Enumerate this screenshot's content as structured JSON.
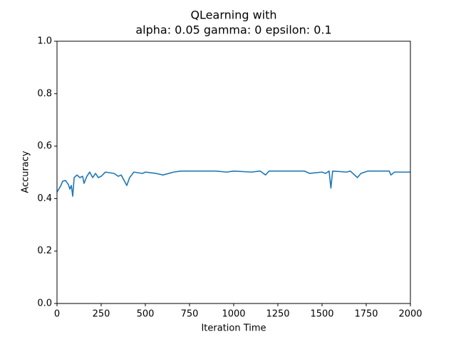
{
  "chart_data": {
    "type": "line",
    "title": "QLearning with",
    "subtitle": "alpha: 0.05 gamma: 0 epsilon: 0.1",
    "x_label": "Iteration Time",
    "y_label": "Accuracy",
    "color": "#1f77b4",
    "grid": false,
    "x": [
      0,
      20,
      32,
      48,
      65,
      73,
      81,
      89,
      97,
      113,
      129,
      145,
      153,
      169,
      185,
      202,
      218,
      234,
      250,
      274,
      323,
      347,
      363,
      395,
      411,
      435,
      484,
      500,
      560,
      600,
      660,
      700,
      900,
      960,
      1000,
      1100,
      1150,
      1180,
      1200,
      1400,
      1430,
      1500,
      1520,
      1540,
      1550,
      1560,
      1640,
      1660,
      1700,
      1720,
      1760,
      1880,
      1890,
      1910,
      2000
    ],
    "values": [
      0.425,
      0.447,
      0.466,
      0.469,
      0.453,
      0.436,
      0.45,
      0.409,
      0.48,
      0.49,
      0.48,
      0.485,
      0.458,
      0.485,
      0.501,
      0.48,
      0.496,
      0.48,
      0.485,
      0.501,
      0.496,
      0.485,
      0.49,
      0.45,
      0.48,
      0.501,
      0.496,
      0.501,
      0.496,
      0.49,
      0.501,
      0.505,
      0.505,
      0.501,
      0.505,
      0.501,
      0.505,
      0.49,
      0.505,
      0.505,
      0.496,
      0.501,
      0.496,
      0.505,
      0.44,
      0.505,
      0.501,
      0.505,
      0.48,
      0.496,
      0.505,
      0.505,
      0.49,
      0.501,
      0.501
    ],
    "xlim": [
      0,
      2000
    ],
    "xticks": [
      0,
      250,
      500,
      750,
      1000,
      1250,
      1500,
      1750,
      2000
    ],
    "ylim": [
      0,
      1
    ],
    "yticks": [
      {
        "value": 0,
        "label": "0.0"
      },
      {
        "value": 0.2,
        "label": "0.2"
      },
      {
        "value": 0.4,
        "label": "0.4"
      },
      {
        "value": 0.6,
        "label": "0.6"
      },
      {
        "value": 0.8,
        "label": "0.8"
      },
      {
        "value": 1,
        "label": "1.0"
      }
    ]
  }
}
